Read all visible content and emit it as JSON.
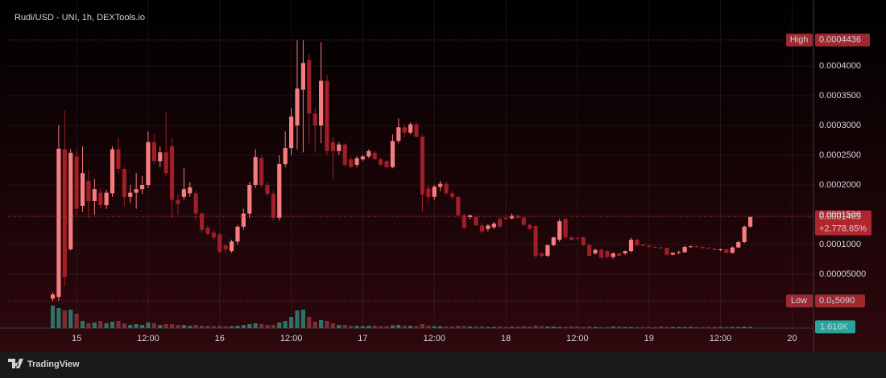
{
  "chart_data": {
    "type": "candlestick",
    "title": "Rudi/USD - UNI, 1h, DEXTools.io",
    "brand": "TradingView",
    "xlim": [
      -11.5,
      123.6
    ],
    "xticks": [
      {
        "value": 0,
        "label": "15"
      },
      {
        "value": 12,
        "label": "12:00"
      },
      {
        "value": 24,
        "label": "16"
      },
      {
        "value": 36,
        "label": "12:00"
      },
      {
        "value": 48,
        "label": "17"
      },
      {
        "value": 60,
        "label": "12:00"
      },
      {
        "value": 72,
        "label": "18"
      },
      {
        "value": 84,
        "label": "12:00"
      },
      {
        "value": 96,
        "label": "19"
      },
      {
        "value": 108,
        "label": "12:00"
      },
      {
        "value": 120,
        "label": "20"
      }
    ],
    "ylim": [
      -4.05e-05,
      0.0004973
    ],
    "yticks": [
      {
        "value": 5e-05,
        "label": "0.00005000"
      },
      {
        "value": 0.0001,
        "label": "0.0001000"
      },
      {
        "value": 0.00015,
        "label": "0.0001500"
      },
      {
        "value": 0.0002,
        "label": "0.0002000"
      },
      {
        "value": 0.00025,
        "label": "0.0002500"
      },
      {
        "value": 0.0003,
        "label": "0.0003000"
      },
      {
        "value": 0.00035,
        "label": "0.0003500"
      },
      {
        "value": 0.0004,
        "label": "0.0004000"
      }
    ],
    "grid": true,
    "up_color": "#f77c80",
    "down_color": "#9e1f27",
    "volume_up_color": "#2f7166",
    "volume_down_color": "#7e2d33",
    "high": {
      "label": "High",
      "value": 0.0004436
    },
    "low": {
      "label": "Low",
      "value": 5.09e-06,
      "value_label": "0.0₅5090"
    },
    "last": {
      "value": 0.0001465,
      "change": "+2,778.65%"
    },
    "x": [
      -4,
      -3,
      -2,
      -1,
      0,
      1,
      2,
      3,
      4,
      5,
      6,
      7,
      8,
      9,
      10,
      11,
      12,
      13,
      14,
      15,
      16,
      17,
      18,
      19,
      20,
      21,
      22,
      23,
      24,
      25,
      26,
      27,
      28,
      29,
      30,
      31,
      32,
      33,
      34,
      35,
      36,
      37,
      38,
      39,
      40,
      41,
      42,
      43,
      44,
      45,
      46,
      47,
      48,
      49,
      50,
      51,
      52,
      53,
      54,
      55,
      56,
      57,
      58,
      59,
      60,
      61,
      62,
      63,
      64,
      65,
      66,
      67,
      68,
      69,
      70,
      71,
      72,
      73,
      74,
      75,
      76,
      77,
      78,
      79,
      80,
      81,
      82,
      83,
      84,
      85,
      86,
      87,
      88,
      89,
      90,
      91,
      92,
      93,
      94,
      95,
      96,
      97,
      98,
      99,
      100,
      101,
      102,
      103,
      104,
      105,
      106,
      107,
      108,
      109,
      110,
      111,
      112,
      113
    ],
    "ohlc": [
      [
        9e-06,
        2e-05,
        5.09e-06,
        1.6e-05
      ],
      [
        1.2e-05,
        0.000301,
        5.09e-06,
        0.000261
      ],
      [
        0.00026,
        0.000325,
        3e-05,
        4.5e-05
      ],
      [
        9.2e-05,
        0.00026,
        9e-05,
        0.000254
      ],
      [
        0.000248,
        0.00026,
        0.00015,
        0.00016
      ],
      [
        0.000165,
        0.000265,
        0.000155,
        0.00022
      ],
      [
        0.000207,
        0.000225,
        0.000145,
        0.000173
      ],
      [
        0.000173,
        0.00021,
        0.00015,
        0.000193
      ],
      [
        0.000187,
        0.000195,
        0.00016,
        0.000166
      ],
      [
        0.000166,
        0.000192,
        0.00016,
        0.000187
      ],
      [
        0.000186,
        0.000265,
        0.00018,
        0.00026
      ],
      [
        0.00026,
        0.00028,
        0.00022,
        0.000227
      ],
      [
        0.000227,
        0.00023,
        0.000165,
        0.00018
      ],
      [
        0.00018,
        0.0002,
        0.00017,
        0.000187
      ],
      [
        0.000187,
        0.00022,
        0.00016,
        0.000193
      ],
      [
        0.000193,
        0.000215,
        0.000185,
        0.0002
      ],
      [
        0.0002,
        0.00029,
        0.000195,
        0.000272
      ],
      [
        0.000272,
        0.000285,
        0.000235,
        0.00024
      ],
      [
        0.00024,
        0.000265,
        0.00023,
        0.000255
      ],
      [
        0.000255,
        0.000322,
        0.000215,
        0.00022
      ],
      [
        0.000265,
        0.00028,
        0.000145,
        0.000175
      ],
      [
        0.000175,
        0.000185,
        0.00015,
        0.000168
      ],
      [
        0.00018,
        0.000228,
        0.000175,
        0.000193
      ],
      [
        0.000186,
        0.000205,
        0.00018,
        0.000196
      ],
      [
        0.000186,
        0.00019,
        0.00014,
        0.000152
      ],
      [
        0.000152,
        0.000155,
        0.00012,
        0.000125
      ],
      [
        0.000128,
        0.000132,
        0.000115,
        0.000118
      ],
      [
        0.00012,
        0.000125,
        0.000108,
        0.000112
      ],
      [
        0.000117,
        0.00012,
        8.5e-05,
        8.8e-05
      ],
      [
        9.8e-05,
        0.0001,
        8.6e-05,
        9.2e-05
      ],
      [
        8.9e-05,
        0.000108,
        8.6e-05,
        0.000105
      ],
      [
        0.000105,
        0.000133,
        0.0001,
        0.00013
      ],
      [
        0.00013,
        0.00016,
        0.000125,
        0.000152
      ],
      [
        0.000152,
        0.000205,
        0.000145,
        0.0002
      ],
      [
        0.0002,
        0.00026,
        0.000195,
        0.000247
      ],
      [
        0.000245,
        0.00025,
        0.000195,
        0.0002
      ],
      [
        0.0002,
        0.000205,
        0.00018,
        0.000185
      ],
      [
        0.000185,
        0.00019,
        0.00014,
        0.000145
      ],
      [
        0.000145,
        0.00025,
        0.00014,
        0.000235
      ],
      [
        0.000235,
        0.00029,
        0.00023,
        0.000262
      ],
      [
        0.000262,
        0.00033,
        0.00025,
        0.000315
      ],
      [
        0.0003,
        0.0004436,
        0.00026,
        0.000362
      ],
      [
        0.00036,
        0.0004436,
        0.000255,
        0.000405
      ],
      [
        0.00041,
        0.00042,
        0.00027,
        0.00032
      ],
      [
        0.00032,
        0.00033,
        0.000255,
        0.0003
      ],
      [
        0.0003,
        0.00044,
        0.00027,
        0.000375
      ],
      [
        0.000375,
        0.000385,
        0.00025,
        0.000257
      ],
      [
        0.000272,
        0.00028,
        0.00021,
        0.000257
      ],
      [
        0.000257,
        0.000272,
        0.00025,
        0.000268
      ],
      [
        0.000268,
        0.00027,
        0.00023,
        0.000234
      ],
      [
        0.000243,
        0.000248,
        0.000228,
        0.00023
      ],
      [
        0.000234,
        0.000248,
        0.00023,
        0.000245
      ],
      [
        0.000243,
        0.00025,
        0.00024,
        0.000248
      ],
      [
        0.000248,
        0.00026,
        0.000245,
        0.000257
      ],
      [
        0.000254,
        0.000258,
        0.000242,
        0.000243
      ],
      [
        0.000243,
        0.000246,
        0.000232,
        0.000234
      ],
      [
        0.00024,
        0.000242,
        0.000228,
        0.00023
      ],
      [
        0.00023,
        0.000285,
        0.000228,
        0.000274
      ],
      [
        0.000274,
        0.000312,
        0.00027,
        0.000297
      ],
      [
        0.000297,
        0.000302,
        0.00028,
        0.000288
      ],
      [
        0.000288,
        0.000305,
        0.000285,
        0.000302
      ],
      [
        0.000302,
        0.000305,
        0.00028,
        0.000281
      ],
      [
        0.000281,
        0.000285,
        0.000155,
        0.000184
      ],
      [
        0.000194,
        0.0002,
        0.00017,
        0.00018
      ],
      [
        0.00018,
        0.0002,
        0.000175,
        0.000197
      ],
      [
        0.000197,
        0.000207,
        0.00019,
        0.000202
      ],
      [
        0.000202,
        0.000205,
        0.000183,
        0.000186
      ],
      [
        0.000186,
        0.00019,
        0.000175,
        0.00018
      ],
      [
        0.00018,
        0.000182,
        0.000145,
        0.000149
      ],
      [
        0.000149,
        0.000152,
        0.000125,
        0.000128
      ],
      [
        0.000146,
        0.00015,
        0.000142,
        0.000149
      ],
      [
        0.000146,
        0.000148,
        0.000132,
        0.000132
      ],
      [
        0.000132,
        0.000136,
        0.000118,
        0.000122
      ],
      [
        0.000126,
        0.000134,
        0.000122,
        0.000132
      ],
      [
        0.000129,
        0.000138,
        0.000126,
        0.000135
      ],
      [
        0.000143,
        0.000146,
        0.000128,
        0.00013
      ],
      [
        0.000145,
        0.00015,
        0.000142,
        0.000143
      ],
      [
        0.000144,
        0.000152,
        0.000142,
        0.000148
      ],
      [
        0.000148,
        0.00015,
        0.000144,
        0.000145
      ],
      [
        0.000145,
        0.000147,
        0.000132,
        0.000133
      ],
      [
        0.000133,
        0.000135,
        0.000125,
        0.000126
      ],
      [
        0.000131,
        0.000133,
        7.8e-05,
        8.1e-05
      ],
      [
        8.5e-05,
        8.7e-05,
        7.8e-05,
        8.1e-05
      ],
      [
        8.1e-05,
        9.9e-05,
        7.9e-05,
        9.9e-05
      ],
      [
        9.9e-05,
        0.000113,
        9.7e-05,
        0.000112
      ],
      [
        0.000108,
        0.000143,
        0.000105,
        0.000139
      ],
      [
        0.000143,
        0.000145,
        0.00011,
        0.000112
      ],
      [
        0.000112,
        0.000114,
        0.000107,
        0.000108
      ],
      [
        0.000111,
        0.000113,
        0.000109,
        0.00011
      ],
      [
        0.000112,
        0.000113,
        9.7e-05,
        9.9e-05
      ],
      [
        9.9e-05,
        0.000101,
        8e-05,
        8.1e-05
      ],
      [
        8.5e-05,
        9.3e-05,
        8.3e-05,
        9.1e-05
      ],
      [
        9.1e-05,
        9.4e-05,
        7.6e-05,
        7.8e-05
      ],
      [
        8.9e-05,
        9.1e-05,
        7.7e-05,
        7.9e-05
      ],
      [
        7.9e-05,
        8.7e-05,
        7.6e-05,
        8.5e-05
      ],
      [
        8.5e-05,
        8.7e-05,
        8e-05,
        8.1e-05
      ],
      [
        8.5e-05,
        9e-05,
        8.3e-05,
        8.9e-05
      ],
      [
        8.9e-05,
        0.000111,
        8.7e-05,
        0.000108
      ],
      [
        0.000108,
        0.00011,
        9.7e-05,
        9.9e-05
      ],
      [
        0.0001,
        0.000101,
        9.7e-05,
        9.8e-05
      ],
      [
        9.8e-05,
        0.0001,
        9.5e-05,
        9.6e-05
      ],
      [
        9.6e-05,
        9.8e-05,
        9.3e-05,
        9.5e-05
      ],
      [
        9.5e-05,
        9.7e-05,
        9.3e-05,
        9.4e-05
      ],
      [
        9.4e-05,
        9.5e-05,
        8.1e-05,
        8.3e-05
      ],
      [
        8.3e-05,
        8.7e-05,
        8.2e-05,
        8.6e-05
      ],
      [
        8.6e-05,
        9e-05,
        8.4e-05,
        8.7e-05
      ],
      [
        8.7e-05,
        9.8e-05,
        8.6e-05,
        9.6e-05
      ],
      [
        9.6e-05,
        9.8e-05,
        9.4e-05,
        9.7e-05
      ],
      [
        9.7e-05,
        9.9e-05,
        9.5e-05,
        9.6e-05
      ],
      [
        9.6e-05,
        9.8e-05,
        9.3e-05,
        9.4e-05
      ],
      [
        9.4e-05,
        9.6e-05,
        9.2e-05,
        9.3e-05
      ],
      [
        9.3e-05,
        9.4e-05,
        9e-05,
        9.1e-05
      ],
      [
        9.1e-05,
        9.3e-05,
        8.9e-05,
        9.2e-05
      ],
      [
        9.2e-05,
        9.3e-05,
        8.4e-05,
        8.6e-05
      ],
      [
        8.6e-05,
        9.7e-05,
        8.5e-05,
        9.5e-05
      ],
      [
        9.5e-05,
        0.000106,
        9.4e-05,
        0.000104
      ],
      [
        0.000104,
        0.000132,
        0.000102,
        0.00013
      ],
      [
        0.00013,
        0.0001475,
        0.000128,
        0.0001465
      ]
    ],
    "volume_lim": [
      0,
      100000
    ],
    "volume": [
      28000,
      25000,
      22000,
      23000,
      18000,
      9000,
      6000,
      7000,
      9000,
      6000,
      8000,
      9000,
      6000,
      4000,
      5000,
      4000,
      7000,
      6000,
      4000,
      5000,
      5000,
      4000,
      4000,
      3000,
      4000,
      3000,
      3000,
      2500,
      3000,
      2500,
      2500,
      3000,
      4000,
      5000,
      6000,
      5000,
      4000,
      4000,
      7000,
      9000,
      14000,
      22000,
      23000,
      14000,
      8000,
      10000,
      9000,
      6000,
      4000,
      4000,
      3000,
      3000,
      2500,
      3000,
      3000,
      2500,
      2500,
      3500,
      4000,
      3000,
      3000,
      2500,
      5000,
      3000,
      2500,
      2500,
      2000,
      2000,
      3000,
      2500,
      2000,
      2000,
      2000,
      1500,
      1500,
      2000,
      1500,
      1500,
      2000,
      2500,
      2000,
      3000,
      2500,
      2000,
      2000,
      1500,
      1500,
      2000,
      2000,
      1500,
      2000,
      1500,
      1500,
      1500,
      2000,
      2000,
      1500,
      1500,
      1500,
      1500,
      1500,
      1500,
      2000,
      1500,
      1500,
      1500,
      1500,
      1500,
      1500,
      1500,
      1500,
      1500,
      1500,
      1500,
      1500,
      1500,
      2000,
      1616
    ],
    "volume_last_label": "1.616K"
  }
}
